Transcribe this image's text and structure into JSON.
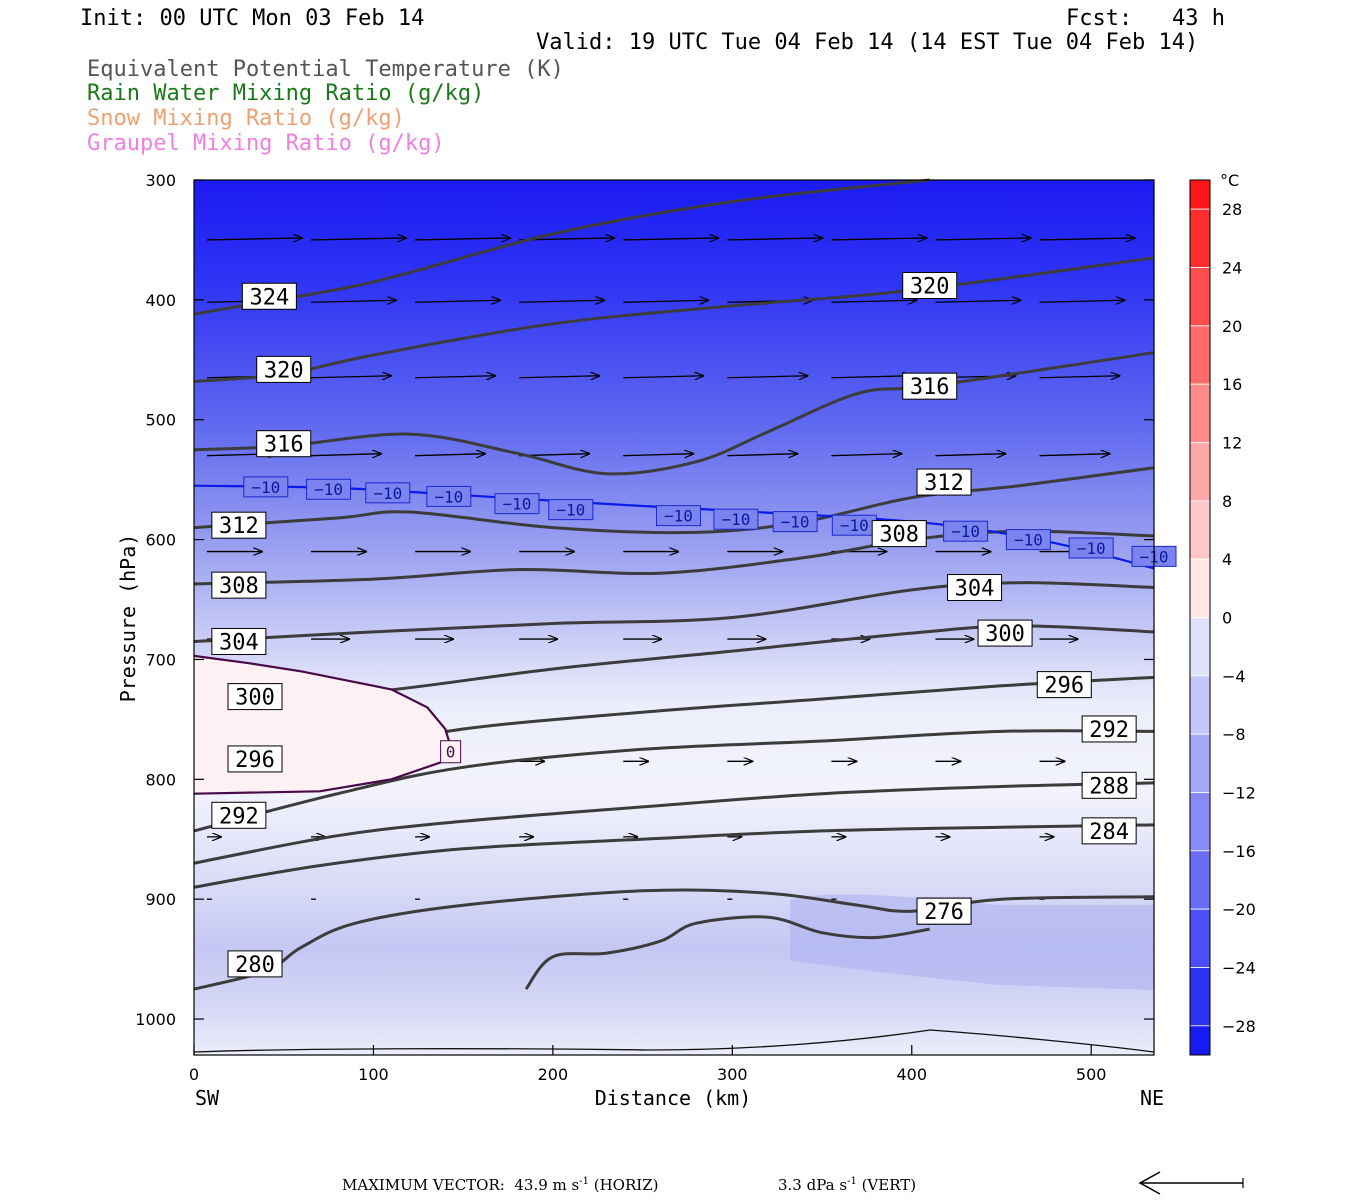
{
  "header": {
    "init": "Init: 00 UTC Mon 03 Feb 14",
    "fcst": "Fcst:   43 h",
    "valid": "Valid: 19 UTC Tue 04 Feb 14 (14 EST Tue 04 Feb 14)"
  },
  "legend": [
    {
      "label": "Equivalent Potential Temperature (K)",
      "color": "#555555"
    },
    {
      "label": "Rain Water Mixing Ratio (g/kg)",
      "color": "#1a7a1a"
    },
    {
      "label": "Snow Mixing Ratio (g/kg)",
      "color": "#f0a070"
    },
    {
      "label": "Graupel Mixing Ratio (g/kg)",
      "color": "#f080e0"
    }
  ],
  "footer": {
    "max_vector": "MAXIMUM VECTOR:  43.9 m s",
    "horiz_unit": "-1",
    "horiz_tail": " (HORIZ)",
    "vert_value": "3.3 dPa s",
    "vert_unit": "-1",
    "vert_tail": " (VERT)"
  },
  "chart_data": {
    "type": "contour",
    "xlabel": "Distance (km)",
    "ylabel": "Pressure (hPa)",
    "xlim": [
      0,
      535
    ],
    "ylim": [
      1030,
      300
    ],
    "x_ticks": [
      "0",
      "100",
      "200",
      "300",
      "400",
      "500"
    ],
    "y_ticks": [
      "300",
      "400",
      "500",
      "600",
      "700",
      "800",
      "900",
      "1000"
    ],
    "x_end_labels": {
      "left": "SW",
      "right": "NE"
    },
    "colorbar": {
      "unit": "°C",
      "levels": [
        30,
        28,
        24,
        20,
        16,
        12,
        8,
        4,
        0,
        -4,
        -8,
        -12,
        -16,
        -20,
        -24,
        -28,
        -30
      ],
      "labels": [
        "28",
        "24",
        "20",
        "16",
        "12",
        "8",
        "4",
        "0",
        "−4",
        "−8",
        "−12",
        "−16",
        "−20",
        "−24",
        "−28"
      ]
    },
    "temperature_zero_label": "0",
    "theta_e_lines": [
      {
        "value": 324,
        "label": "324",
        "pts": [
          [
            0,
            412
          ],
          [
            30,
            404
          ],
          [
            100,
            385
          ],
          [
            200,
            345
          ],
          [
            300,
            318
          ],
          [
            410,
            300
          ]
        ],
        "lx": 42,
        "ly": 397
      },
      {
        "value": 320,
        "label": "320",
        "pts": [
          [
            0,
            468
          ],
          [
            50,
            462
          ],
          [
            100,
            446
          ],
          [
            200,
            420
          ],
          [
            300,
            405
          ],
          [
            400,
            392
          ],
          [
            535,
            365
          ]
        ],
        "lx": 50,
        "ly": 458,
        "lx2": 410,
        "ly2": 388
      },
      {
        "value": 316,
        "label": "316",
        "pts": [
          [
            0,
            525
          ],
          [
            50,
            522
          ],
          [
            120,
            512
          ],
          [
            180,
            528
          ],
          [
            230,
            545
          ],
          [
            280,
            535
          ],
          [
            320,
            510
          ],
          [
            370,
            478
          ],
          [
            410,
            472
          ],
          [
            500,
            452
          ],
          [
            535,
            444
          ]
        ],
        "lx": 50,
        "ly": 520,
        "lx2": 410,
        "ly2": 472
      },
      {
        "value": 312,
        "label": "312",
        "pts": [
          [
            0,
            590
          ],
          [
            80,
            582
          ],
          [
            120,
            577
          ],
          [
            200,
            590
          ],
          [
            280,
            594
          ],
          [
            340,
            585
          ],
          [
            400,
            565
          ],
          [
            460,
            555
          ],
          [
            535,
            540
          ]
        ],
        "lx": 25,
        "ly": 588,
        "lx2": 418,
        "ly2": 552
      },
      {
        "value": 308,
        "label": "308",
        "pts": [
          [
            0,
            637
          ],
          [
            100,
            633
          ],
          [
            180,
            625
          ],
          [
            260,
            628
          ],
          [
            340,
            615
          ],
          [
            400,
            600
          ],
          [
            460,
            593
          ],
          [
            535,
            597
          ]
        ],
        "lx": 25,
        "ly": 638,
        "lx2": 393,
        "ly2": 595
      },
      {
        "value": 304,
        "label": "304",
        "pts": [
          [
            0,
            685
          ],
          [
            100,
            677
          ],
          [
            200,
            670
          ],
          [
            300,
            665
          ],
          [
            400,
            642
          ],
          [
            460,
            636
          ],
          [
            535,
            640
          ]
        ],
        "lx": 25,
        "ly": 685,
        "lx2": 435,
        "ly2": 640
      },
      {
        "value": 300,
        "label": "300",
        "pts": [
          [
            0,
            738
          ],
          [
            100,
            727
          ],
          [
            200,
            708
          ],
          [
            300,
            693
          ],
          [
            400,
            678
          ],
          [
            460,
            672
          ],
          [
            535,
            677
          ]
        ],
        "lx": 34,
        "ly": 731,
        "lx2": 452,
        "ly2": 678
      },
      {
        "value": 296,
        "label": "296",
        "pts": [
          [
            0,
            797
          ],
          [
            80,
            778
          ],
          [
            150,
            758
          ],
          [
            250,
            744
          ],
          [
            350,
            733
          ],
          [
            450,
            722
          ],
          [
            535,
            715
          ]
        ],
        "lx": 34,
        "ly": 783,
        "lx2": 485,
        "ly2": 721
      },
      {
        "value": 292,
        "label": "292",
        "pts": [
          [
            0,
            843
          ],
          [
            80,
            812
          ],
          [
            150,
            790
          ],
          [
            250,
            775
          ],
          [
            350,
            768
          ],
          [
            450,
            760
          ],
          [
            535,
            760
          ]
        ],
        "lx": 25,
        "ly": 830,
        "lx2": 510,
        "ly2": 758
      },
      {
        "value": 288,
        "label": "288",
        "pts": [
          [
            0,
            870
          ],
          [
            80,
            847
          ],
          [
            150,
            835
          ],
          [
            250,
            823
          ],
          [
            350,
            812
          ],
          [
            450,
            806
          ],
          [
            535,
            803
          ]
        ],
        "lx": 510,
        "ly": 805
      },
      {
        "value": 284,
        "label": "284",
        "pts": [
          [
            0,
            890
          ],
          [
            70,
            872
          ],
          [
            150,
            858
          ],
          [
            250,
            850
          ],
          [
            350,
            843
          ],
          [
            450,
            840
          ],
          [
            535,
            838
          ]
        ],
        "lx": 510,
        "ly": 843
      },
      {
        "value": 280,
        "label": "280",
        "pts": [
          [
            0,
            975
          ],
          [
            40,
            960
          ],
          [
            60,
            940
          ],
          [
            90,
            920
          ],
          [
            150,
            905
          ],
          [
            250,
            893
          ],
          [
            320,
            895
          ],
          [
            370,
            905
          ],
          [
            400,
            910
          ],
          [
            450,
            900
          ],
          [
            535,
            898
          ]
        ],
        "lx": 34,
        "ly": 954,
        "lx2": 418,
        "ly2": 910
      },
      {
        "value": 276,
        "label": "276",
        "pts": [
          [
            185,
            975
          ],
          [
            200,
            948
          ],
          [
            230,
            945
          ],
          [
            260,
            935
          ],
          [
            280,
            920
          ],
          [
            320,
            915
          ],
          [
            350,
            928
          ],
          [
            380,
            932
          ],
          [
            410,
            925
          ]
        ],
        "lx": 418,
        "ly": 910
      }
    ],
    "isotherm_minus10": {
      "label": "−10",
      "pts": [
        [
          0,
          555
        ],
        [
          80,
          557
        ],
        [
          150,
          563
        ],
        [
          250,
          572
        ],
        [
          350,
          580
        ],
        [
          420,
          588
        ],
        [
          480,
          603
        ],
        [
          535,
          624
        ]
      ],
      "labels_at": [
        [
          40,
          556
        ],
        [
          75,
          558
        ],
        [
          108,
          561
        ],
        [
          142,
          564
        ],
        [
          180,
          570
        ],
        [
          210,
          575
        ],
        [
          270,
          580
        ],
        [
          302,
          583
        ],
        [
          335,
          585
        ],
        [
          368,
          588
        ],
        [
          430,
          593
        ],
        [
          465,
          600
        ],
        [
          500,
          607
        ],
        [
          535,
          614
        ]
      ]
    },
    "isotherm_zero": {
      "pts": [
        [
          0,
          697
        ],
        [
          30,
          703
        ],
        [
          60,
          710
        ],
        [
          110,
          725
        ],
        [
          130,
          740
        ],
        [
          140,
          758
        ],
        [
          145,
          782
        ],
        [
          110,
          800
        ],
        [
          70,
          810
        ],
        [
          0,
          812
        ]
      ],
      "label_at": [
        143,
        777
      ]
    }
  }
}
